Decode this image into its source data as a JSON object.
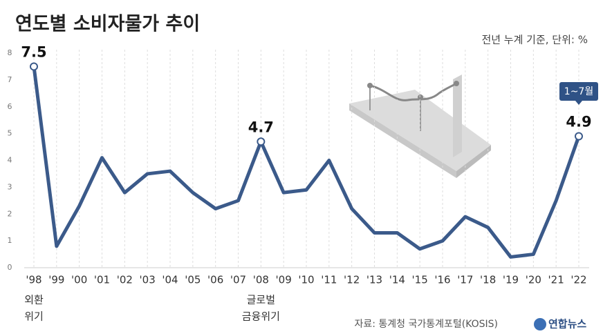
{
  "chart_data": {
    "type": "line",
    "title": "연도별 소비자물가 추이",
    "subtitle": "전년 누계 기준, 단위: %",
    "categories": [
      "'98",
      "'99",
      "'00",
      "'01",
      "'02",
      "'03",
      "'04",
      "'05",
      "'06",
      "'07",
      "'08",
      "'09",
      "'10",
      "'11",
      "'12",
      "'13",
      "'14",
      "'15",
      "'16",
      "'17",
      "'18",
      "'19",
      "'20",
      "'21",
      "'22"
    ],
    "values": [
      7.5,
      0.8,
      2.3,
      4.1,
      2.8,
      3.5,
      3.6,
      2.8,
      2.2,
      2.5,
      4.7,
      2.8,
      2.9,
      4.0,
      2.2,
      1.3,
      1.3,
      0.7,
      1.0,
      1.9,
      1.5,
      0.4,
      0.5,
      2.5,
      4.9
    ],
    "value_labels": [
      "7.5",
      null,
      null,
      null,
      null,
      null,
      null,
      null,
      null,
      null,
      "4.7",
      null,
      null,
      null,
      null,
      null,
      null,
      null,
      null,
      null,
      null,
      null,
      null,
      null,
      "4.9"
    ],
    "color": "#3b5a8a",
    "ylim": [
      0,
      8
    ],
    "yticks": [
      0,
      1,
      2,
      3,
      4,
      5,
      6,
      7,
      8
    ],
    "grid": true,
    "annotations": [
      {
        "at": "'98",
        "lines": [
          "외환",
          "위기"
        ]
      },
      {
        "at": "'08",
        "lines": [
          "글로벌",
          "금융위기"
        ]
      }
    ],
    "callout": {
      "at": "'22",
      "text": "1~7월"
    },
    "source": "자료: 통계청 국가통계포털(KOSIS)",
    "logo": "연합뉴스"
  }
}
